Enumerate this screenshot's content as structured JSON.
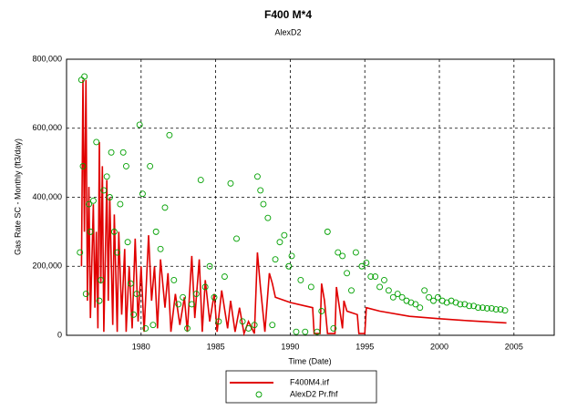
{
  "chart_data": {
    "type": "line",
    "title": "F400 M*4",
    "subtitle": "AlexD2",
    "xlabel": "Time (Date)",
    "ylabel": "Gas Rate SC - Monthly (ft3/day)",
    "xlim": [
      1975,
      2007.7
    ],
    "xticks": [
      1980,
      1985,
      1990,
      1995,
      2000,
      2005
    ],
    "ylim": [
      0,
      800000
    ],
    "yticks": [
      0,
      {
        "value": 200000,
        "label": "200,000"
      },
      {
        "value": 400000,
        "label": "400,000"
      },
      {
        "value": 600000,
        "label": "600,000"
      },
      {
        "value": 800000,
        "label": "800,000"
      }
    ],
    "grid": true,
    "legend": "bottom",
    "series": [
      {
        "name": "F400M4.irf",
        "type": "line",
        "color": "#e00000",
        "x": [
          1976.0,
          1976.1,
          1976.2,
          1976.3,
          1976.4,
          1976.5,
          1976.6,
          1976.8,
          1976.9,
          1977.0,
          1977.1,
          1977.2,
          1977.3,
          1977.4,
          1977.5,
          1977.7,
          1977.8,
          1977.9,
          1978.1,
          1978.2,
          1978.4,
          1978.5,
          1978.7,
          1978.9,
          1979.0,
          1979.2,
          1979.4,
          1979.6,
          1979.8,
          1980.0,
          1980.2,
          1980.5,
          1980.7,
          1980.9,
          1981.1,
          1981.3,
          1981.6,
          1981.8,
          1982.0,
          1982.3,
          1982.6,
          1982.9,
          1983.1,
          1983.4,
          1983.6,
          1983.9,
          1984.1,
          1984.3,
          1984.6,
          1984.9,
          1985.1,
          1985.4,
          1985.8,
          1986.0,
          1986.3,
          1986.6,
          1986.9,
          1987.2,
          1987.6,
          1987.8,
          1988.0,
          1988.3,
          1988.6,
          1988.8,
          1989.0,
          1990.0,
          1991.0,
          1991.5,
          1991.6,
          1992.0,
          1992.1,
          1992.3,
          1992.5,
          1993.0,
          1993.1,
          1993.3,
          1993.5,
          1993.6,
          1993.8,
          1994.5,
          1994.6,
          1995.0,
          1995.1,
          1996,
          1998,
          2000,
          2002,
          2004.5
        ],
        "values": [
          200000,
          740000,
          300000,
          740000,
          100000,
          430000,
          50000,
          380000,
          80000,
          300000,
          20000,
          560000,
          150000,
          490000,
          10000,
          450000,
          100000,
          400000,
          30000,
          350000,
          10000,
          300000,
          60000,
          250000,
          10000,
          200000,
          20000,
          280000,
          40000,
          200000,
          10000,
          290000,
          100000,
          200000,
          20000,
          220000,
          80000,
          180000,
          10000,
          120000,
          30000,
          110000,
          10000,
          230000,
          50000,
          220000,
          10000,
          160000,
          40000,
          120000,
          10000,
          130000,
          20000,
          100000,
          10000,
          80000,
          5000,
          40000,
          5000,
          240000,
          140000,
          10000,
          180000,
          150000,
          110000,
          95000,
          85000,
          80000,
          5000,
          5000,
          150000,
          100000,
          5000,
          5000,
          140000,
          80000,
          20000,
          100000,
          70000,
          60000,
          5000,
          5000,
          80000,
          70000,
          55000,
          48000,
          42000,
          36000
        ]
      },
      {
        "name": "AlexD2 Pr.fhf",
        "type": "scatter",
        "color": "#00a000",
        "x": [
          1975.9,
          1976.0,
          1976.1,
          1976.2,
          1976.3,
          1976.5,
          1976.6,
          1976.8,
          1977.0,
          1977.2,
          1977.3,
          1977.5,
          1977.7,
          1977.9,
          1978.0,
          1978.2,
          1978.4,
          1978.6,
          1978.8,
          1979.0,
          1979.1,
          1979.3,
          1979.5,
          1979.7,
          1979.9,
          1980.1,
          1980.3,
          1980.6,
          1980.8,
          1981.0,
          1981.3,
          1981.6,
          1981.9,
          1982.2,
          1982.5,
          1982.8,
          1983.1,
          1983.4,
          1983.7,
          1984.0,
          1984.3,
          1984.6,
          1984.9,
          1985.2,
          1985.6,
          1986.0,
          1986.4,
          1986.8,
          1987.2,
          1987.6,
          1987.8,
          1988.0,
          1988.2,
          1988.5,
          1988.8,
          1989.0,
          1989.3,
          1989.6,
          1989.9,
          1990.1,
          1990.4,
          1990.7,
          1991.0,
          1991.4,
          1991.8,
          1992.1,
          1992.5,
          1992.9,
          1993.2,
          1993.5,
          1993.8,
          1994.1,
          1994.4,
          1994.8,
          1995.1,
          1995.4,
          1995.7,
          1996.0,
          1996.3,
          1996.6,
          1996.9,
          1997.2,
          1997.5,
          1997.8,
          1998.1,
          1998.4,
          1998.7,
          1999.0,
          1999.3,
          1999.6,
          1999.9,
          2000.2,
          2000.5,
          2000.8,
          2001.1,
          2001.4,
          2001.7,
          2002.0,
          2002.3,
          2002.6,
          2002.9,
          2003.2,
          2003.5,
          2003.8,
          2004.1,
          2004.4
        ],
        "values": [
          240000,
          740000,
          490000,
          750000,
          120000,
          380000,
          300000,
          390000,
          560000,
          100000,
          160000,
          420000,
          460000,
          400000,
          530000,
          300000,
          240000,
          380000,
          530000,
          490000,
          270000,
          150000,
          60000,
          120000,
          610000,
          410000,
          20000,
          490000,
          30000,
          300000,
          250000,
          370000,
          580000,
          160000,
          90000,
          110000,
          20000,
          90000,
          120000,
          450000,
          140000,
          200000,
          110000,
          40000,
          170000,
          440000,
          280000,
          40000,
          20000,
          30000,
          460000,
          420000,
          380000,
          340000,
          30000,
          220000,
          270000,
          290000,
          200000,
          230000,
          10000,
          160000,
          10000,
          140000,
          10000,
          70000,
          300000,
          20000,
          240000,
          230000,
          180000,
          130000,
          240000,
          200000,
          210000,
          170000,
          170000,
          140000,
          160000,
          130000,
          110000,
          120000,
          110000,
          100000,
          95000,
          90000,
          80000,
          130000,
          110000,
          100000,
          110000,
          100000,
          95000,
          100000,
          95000,
          90000,
          90000,
          85000,
          85000,
          80000,
          80000,
          78000,
          78000,
          75000,
          75000,
          72000
        ]
      }
    ]
  }
}
